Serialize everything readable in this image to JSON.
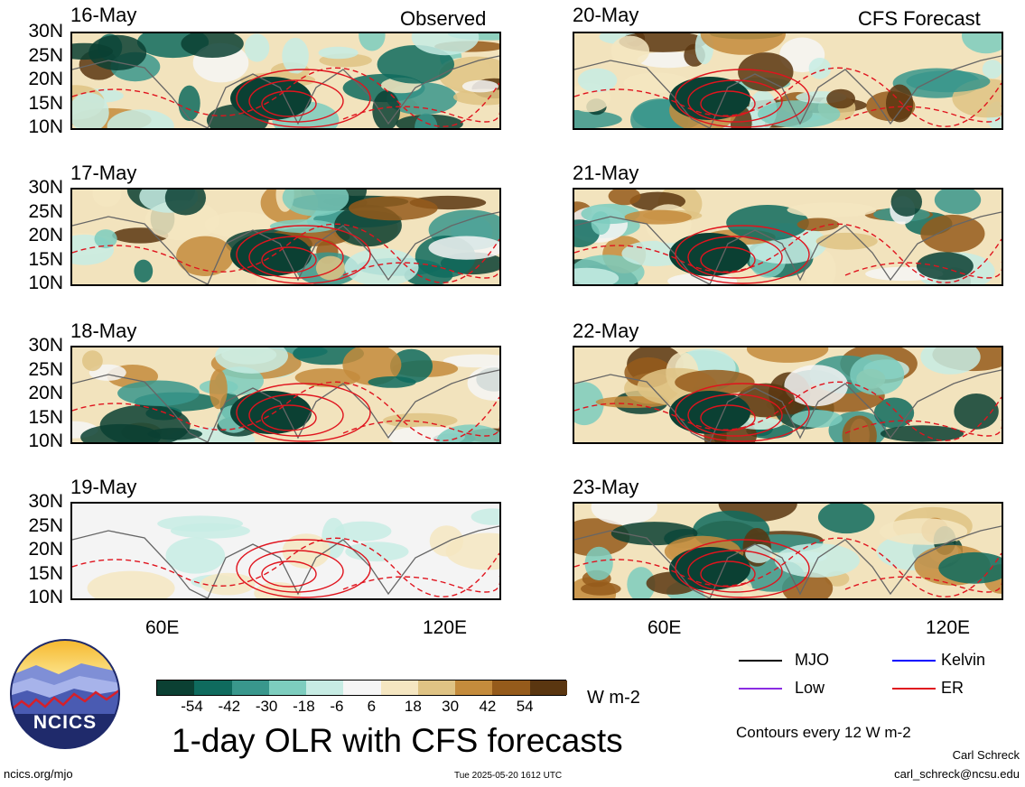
{
  "header": {
    "left_title": "Observed",
    "right_title": "CFS Forecast"
  },
  "panels_left": [
    {
      "date": "16-May",
      "kind": "observed"
    },
    {
      "date": "17-May",
      "kind": "observed"
    },
    {
      "date": "18-May",
      "kind": "observed"
    },
    {
      "date": "19-May",
      "kind": "observed"
    }
  ],
  "panels_right": [
    {
      "date": "20-May",
      "kind": "forecast"
    },
    {
      "date": "21-May",
      "kind": "forecast"
    },
    {
      "date": "22-May",
      "kind": "forecast"
    },
    {
      "date": "23-May",
      "kind": "forecast"
    }
  ],
  "lat_labels": [
    "30N",
    "25N",
    "20N",
    "15N",
    "10N"
  ],
  "lon_labels": [
    "60E",
    "120E"
  ],
  "colorbar": {
    "colors": [
      "#0b4033",
      "#0f6b5e",
      "#39978c",
      "#7dcdbe",
      "#c7ece4",
      "#f6f6f6",
      "#f5e6c1",
      "#dfc384",
      "#c48b3c",
      "#955b1b",
      "#5a3610"
    ],
    "ticks": [
      "-54",
      "-42",
      "-30",
      "-18",
      "-6",
      "6",
      "18",
      "30",
      "42",
      "54"
    ],
    "units": "W m-2"
  },
  "legend": {
    "items": [
      {
        "label": "MJO",
        "color": "#000000"
      },
      {
        "label": "Kelvin",
        "color": "#0000ff"
      },
      {
        "label": "Low",
        "color": "#8a2be2"
      },
      {
        "label": "ER",
        "color": "#e0141e"
      }
    ],
    "contours_note": "Contours every 12 W m-2"
  },
  "footer": {
    "main_title": "1-day OLR with CFS forecasts",
    "left_url": "ncics.org/mjo",
    "timestamp": "Tue 2025-05-20 1612 UTC",
    "author": "Carl Schreck",
    "email": "carl_schreck@ncsu.edu",
    "logo_text": "NCICS"
  }
}
